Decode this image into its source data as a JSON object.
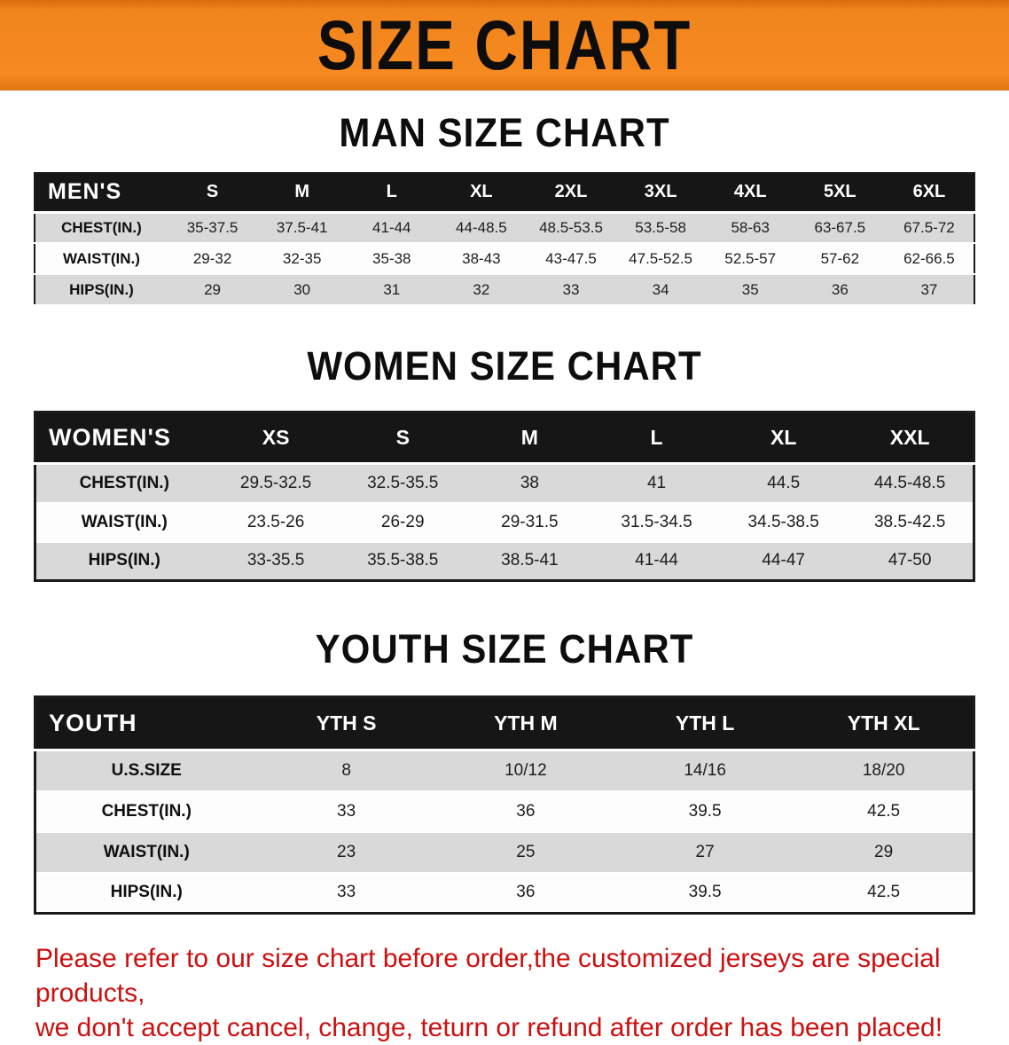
{
  "banner": {
    "title": "SIZE CHART",
    "background_color": "#f1851d",
    "text_color": "#0d0d0d"
  },
  "sections": {
    "men": {
      "heading": "MAN SIZE CHART",
      "table": {
        "label": "MEN'S",
        "columns": [
          "S",
          "M",
          "L",
          "XL",
          "2XL",
          "3XL",
          "4XL",
          "5XL",
          "6XL"
        ],
        "rows": [
          {
            "label": "CHEST(IN.)",
            "values": [
              "35-37.5",
              "37.5-41",
              "41-44",
              "44-48.5",
              "48.5-53.5",
              "53.5-58",
              "58-63",
              "63-67.5",
              "67.5-72"
            ]
          },
          {
            "label": "WAIST(IN.)",
            "values": [
              "29-32",
              "32-35",
              "35-38",
              "38-43",
              "43-47.5",
              "47.5-52.5",
              "52.5-57",
              "57-62",
              "62-66.5"
            ]
          },
          {
            "label": "HIPS(IN.)",
            "values": [
              "29",
              "30",
              "31",
              "32",
              "33",
              "34",
              "35",
              "36",
              "37"
            ]
          }
        ]
      }
    },
    "women": {
      "heading": "WOMEN SIZE CHART",
      "table": {
        "label": "WOMEN'S",
        "columns": [
          "XS",
          "S",
          "M",
          "L",
          "XL",
          "XXL"
        ],
        "rows": [
          {
            "label": "CHEST(IN.)",
            "values": [
              "29.5-32.5",
              "32.5-35.5",
              "38",
              "41",
              "44.5",
              "44.5-48.5"
            ]
          },
          {
            "label": "WAIST(IN.)",
            "values": [
              "23.5-26",
              "26-29",
              "29-31.5",
              "31.5-34.5",
              "34.5-38.5",
              "38.5-42.5"
            ]
          },
          {
            "label": "HIPS(IN.)",
            "values": [
              "33-35.5",
              "35.5-38.5",
              "38.5-41",
              "41-44",
              "44-47",
              "47-50"
            ]
          }
        ]
      }
    },
    "youth": {
      "heading": "YOUTH SIZE CHART",
      "table": {
        "label": "YOUTH",
        "columns": [
          "YTH S",
          "YTH M",
          "YTH L",
          "YTH XL"
        ],
        "rows": [
          {
            "label": "U.S.SIZE",
            "values": [
              "8",
              "10/12",
              "14/16",
              "18/20"
            ]
          },
          {
            "label": "CHEST(IN.)",
            "values": [
              "33",
              "36",
              "39.5",
              "42.5"
            ]
          },
          {
            "label": "WAIST(IN.)",
            "values": [
              "23",
              "25",
              "27",
              "29"
            ]
          },
          {
            "label": "HIPS(IN.)",
            "values": [
              "33",
              "36",
              "39.5",
              "42.5"
            ]
          }
        ]
      }
    }
  },
  "disclaimer": {
    "line1": "Please refer to our size chart before order,the customized jerseys are special products,",
    "line2": "we don't accept cancel, change, teturn or refund after order has been placed!",
    "text_color": "#cc1010"
  }
}
